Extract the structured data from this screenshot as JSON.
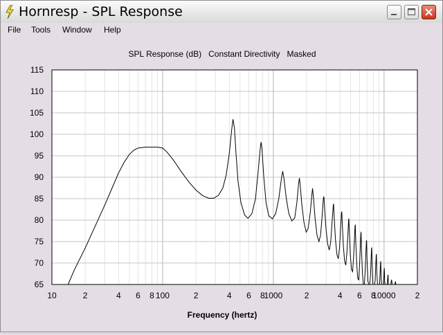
{
  "window": {
    "title": "Hornresp - SPL Response",
    "icon": "lightning-icon",
    "buttons": [
      {
        "name": "minimize-button",
        "icon": "minimize-icon"
      },
      {
        "name": "maximize-button",
        "icon": "maximize-icon"
      },
      {
        "name": "close-button",
        "icon": "close-icon"
      }
    ]
  },
  "menu": {
    "items": [
      "File",
      "Tools",
      "Window",
      "Help"
    ]
  },
  "chart_data": {
    "type": "line",
    "title": "SPL Response (dB)   Constant Directivity   Masked",
    "xlabel": "Frequency (hertz)",
    "ylabel": "",
    "xscale": "log",
    "xlim": [
      10,
      20000
    ],
    "ylim": [
      65,
      115
    ],
    "yticks": [
      65,
      70,
      75,
      80,
      85,
      90,
      95,
      100,
      105,
      110,
      115
    ],
    "xtick_labels": [
      {
        "value": 10,
        "label": "10"
      },
      {
        "value": 20,
        "label": "2"
      },
      {
        "value": 40,
        "label": "4"
      },
      {
        "value": 60,
        "label": "6"
      },
      {
        "value": 80,
        "label": "8"
      },
      {
        "value": 100,
        "label": "100"
      },
      {
        "value": 200,
        "label": "2"
      },
      {
        "value": 400,
        "label": "4"
      },
      {
        "value": 600,
        "label": "6"
      },
      {
        "value": 800,
        "label": "8"
      },
      {
        "value": 1000,
        "label": "1000"
      },
      {
        "value": 2000,
        "label": "2"
      },
      {
        "value": 4000,
        "label": "4"
      },
      {
        "value": 6000,
        "label": "6"
      },
      {
        "value": 8000,
        "label": "8"
      },
      {
        "value": 10000,
        "label": "10000"
      },
      {
        "value": 20000,
        "label": "2"
      }
    ],
    "grid": true,
    "legend": "none",
    "line_color": "#000000",
    "series": [
      {
        "points": [
          [
            14,
            65
          ],
          [
            16,
            68.5
          ],
          [
            20,
            73.5
          ],
          [
            25,
            79
          ],
          [
            30,
            83.5
          ],
          [
            35,
            87.5
          ],
          [
            40,
            91
          ],
          [
            45,
            93.5
          ],
          [
            50,
            95.3
          ],
          [
            55,
            96.3
          ],
          [
            60,
            96.8
          ],
          [
            70,
            97
          ],
          [
            80,
            97
          ],
          [
            90,
            97
          ],
          [
            100,
            96.8
          ],
          [
            110,
            95.8
          ],
          [
            125,
            94
          ],
          [
            150,
            91
          ],
          [
            175,
            88.7
          ],
          [
            200,
            87
          ],
          [
            230,
            85.7
          ],
          [
            260,
            85.1
          ],
          [
            290,
            85.1
          ],
          [
            320,
            85.8
          ],
          [
            350,
            87.5
          ],
          [
            375,
            90.5
          ],
          [
            400,
            95.5
          ],
          [
            420,
            101
          ],
          [
            432,
            103.5
          ],
          [
            445,
            101.5
          ],
          [
            460,
            95.5
          ],
          [
            480,
            89
          ],
          [
            510,
            84
          ],
          [
            550,
            81.2
          ],
          [
            590,
            80.4
          ],
          [
            640,
            81.5
          ],
          [
            690,
            85
          ],
          [
            730,
            91.5
          ],
          [
            760,
            96.5
          ],
          [
            775,
            98.2
          ],
          [
            790,
            96.5
          ],
          [
            820,
            90
          ],
          [
            860,
            84
          ],
          [
            910,
            81
          ],
          [
            980,
            80.3
          ],
          [
            1050,
            81.5
          ],
          [
            1120,
            85
          ],
          [
            1180,
            89.5
          ],
          [
            1215,
            91.4
          ],
          [
            1250,
            89.5
          ],
          [
            1310,
            85
          ],
          [
            1380,
            81.5
          ],
          [
            1470,
            79.8
          ],
          [
            1560,
            80.5
          ],
          [
            1630,
            84
          ],
          [
            1690,
            88.5
          ],
          [
            1720,
            89.8
          ],
          [
            1750,
            88
          ],
          [
            1810,
            83.5
          ],
          [
            1890,
            79.5
          ],
          [
            1980,
            77.2
          ],
          [
            2060,
            78
          ],
          [
            2160,
            82
          ],
          [
            2230,
            86
          ],
          [
            2260,
            87.4
          ],
          [
            2300,
            85.5
          ],
          [
            2380,
            80.5
          ],
          [
            2480,
            76.5
          ],
          [
            2580,
            75
          ],
          [
            2670,
            76.5
          ],
          [
            2760,
            81
          ],
          [
            2830,
            85
          ],
          [
            2860,
            85.5
          ],
          [
            2900,
            83
          ],
          [
            2990,
            78
          ],
          [
            3090,
            74.5
          ],
          [
            3200,
            73
          ],
          [
            3300,
            75
          ],
          [
            3400,
            80
          ],
          [
            3480,
            83.5
          ],
          [
            3500,
            83.8
          ],
          [
            3540,
            81
          ],
          [
            3640,
            75.5
          ],
          [
            3750,
            72
          ],
          [
            3860,
            71
          ],
          [
            3960,
            73.5
          ],
          [
            4050,
            78
          ],
          [
            4120,
            81.7
          ],
          [
            4150,
            82
          ],
          [
            4190,
            79.5
          ],
          [
            4290,
            74
          ],
          [
            4400,
            70.5
          ],
          [
            4510,
            69.5
          ],
          [
            4620,
            72.5
          ],
          [
            4720,
            77
          ],
          [
            4790,
            80.2
          ],
          [
            4810,
            80.3
          ],
          [
            4860,
            77
          ],
          [
            4970,
            71.5
          ],
          [
            5080,
            68.5
          ],
          [
            5200,
            68
          ],
          [
            5310,
            71.5
          ],
          [
            5410,
            76
          ],
          [
            5470,
            78.7
          ],
          [
            5500,
            78.8
          ],
          [
            5550,
            75
          ],
          [
            5670,
            69.5
          ],
          [
            5780,
            66.5
          ],
          [
            5900,
            66
          ],
          [
            6010,
            69.5
          ],
          [
            6110,
            74
          ],
          [
            6170,
            77
          ],
          [
            6200,
            77.1
          ],
          [
            6260,
            73
          ],
          [
            6380,
            67.5
          ],
          [
            6500,
            65
          ],
          [
            6640,
            65
          ],
          [
            6760,
            68.5
          ],
          [
            6870,
            73
          ],
          [
            6930,
            75.2
          ],
          [
            6960,
            75.2
          ],
          [
            7020,
            71
          ],
          [
            7150,
            65.8
          ],
          [
            7280,
            65
          ],
          [
            7420,
            65
          ],
          [
            7540,
            67
          ],
          [
            7650,
            71.5
          ],
          [
            7710,
            73.5
          ],
          [
            7740,
            73.6
          ],
          [
            7800,
            69.5
          ],
          [
            7930,
            65
          ],
          [
            8200,
            65
          ],
          [
            8320,
            66
          ],
          [
            8430,
            70
          ],
          [
            8500,
            72
          ],
          [
            8530,
            72
          ],
          [
            8600,
            68
          ],
          [
            8730,
            65
          ],
          [
            9000,
            65
          ],
          [
            9120,
            65.2
          ],
          [
            9240,
            68.5
          ],
          [
            9310,
            70.3
          ],
          [
            9340,
            70.3
          ],
          [
            9410,
            66.5
          ],
          [
            9520,
            65
          ],
          [
            9850,
            65
          ],
          [
            9950,
            67
          ],
          [
            10030,
            68.7
          ],
          [
            10060,
            68.7
          ],
          [
            10130,
            65.5
          ],
          [
            10250,
            65
          ],
          [
            10650,
            65
          ],
          [
            10760,
            66
          ],
          [
            10840,
            67.2
          ],
          [
            10870,
            67.2
          ],
          [
            10950,
            65
          ],
          [
            11500,
            65
          ],
          [
            11620,
            65.8
          ],
          [
            11700,
            66.1
          ],
          [
            11760,
            65.5
          ],
          [
            11850,
            65
          ],
          [
            12500,
            65
          ],
          [
            12620,
            65.5
          ],
          [
            12700,
            65.6
          ],
          [
            12780,
            65
          ],
          [
            13000,
            65
          ]
        ]
      }
    ]
  }
}
